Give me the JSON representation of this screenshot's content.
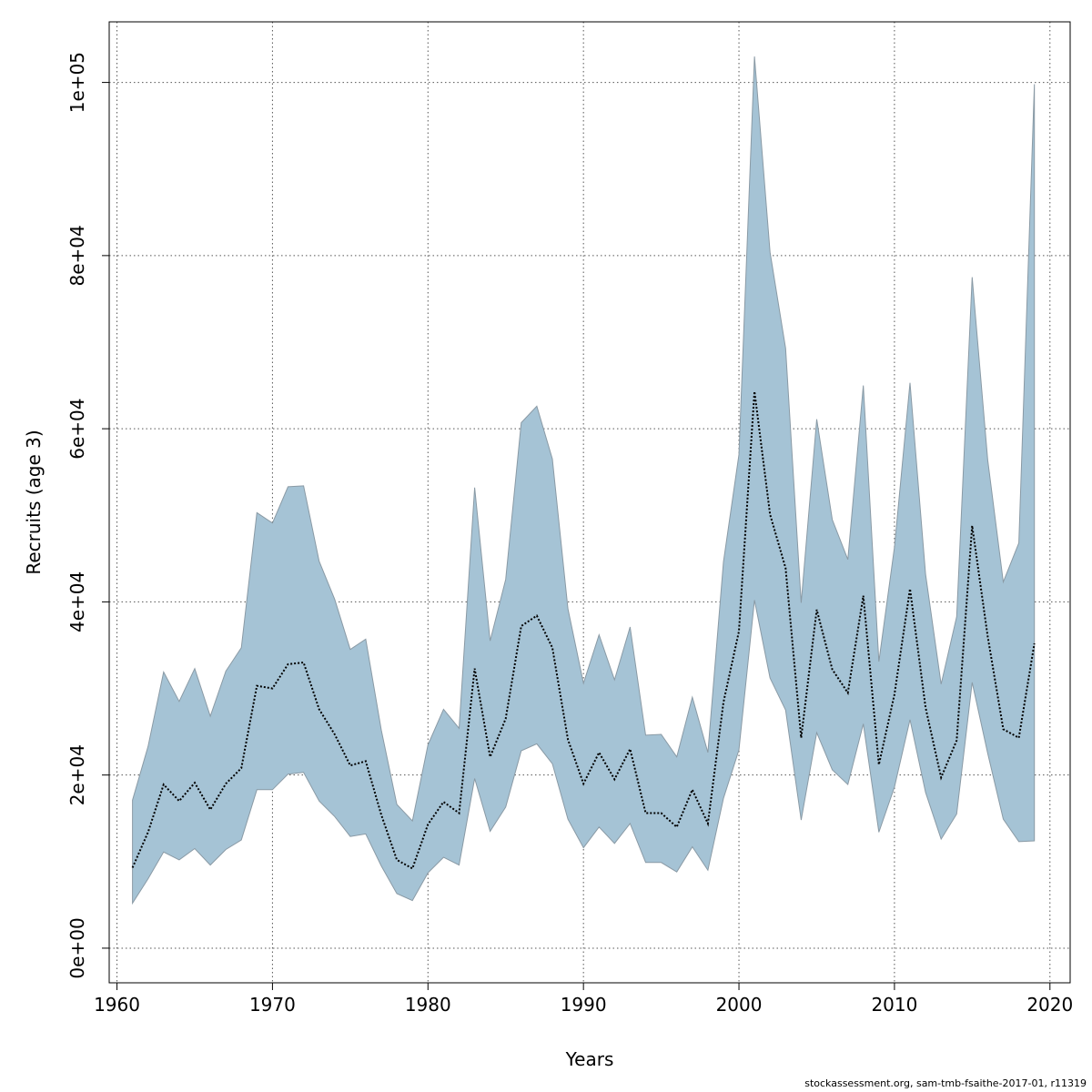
{
  "chart_data": {
    "type": "area",
    "xlabel": "Years",
    "ylabel": "Recruits (age 3)",
    "xlim": [
      1959.5,
      2021.3
    ],
    "ylim": [
      -4000,
      107000
    ],
    "x_ticks": [
      1960,
      1970,
      1980,
      1990,
      2000,
      2010,
      2020
    ],
    "x_tick_labels": [
      "1960",
      "1970",
      "1980",
      "1990",
      "2000",
      "2010",
      "2020"
    ],
    "y_ticks": [
      0,
      20000,
      40000,
      60000,
      80000,
      100000
    ],
    "y_tick_labels": [
      "0e+00",
      "2e+04",
      "4e+04",
      "6e+04",
      "8e+04",
      "1e+05"
    ],
    "grid": true,
    "colors": {
      "band_fill": "#a5c3d5",
      "band_stroke": "#8a9aa5",
      "line": "#000000",
      "grid": "#555555"
    },
    "series": [
      {
        "estimate": [
          9300,
          13400,
          18900,
          17000,
          19100,
          16000,
          19000,
          20800,
          30300,
          30000,
          32800,
          33000,
          27600,
          24700,
          21100,
          21600,
          15400,
          10200,
          9200,
          14300,
          16900,
          15600,
          32300,
          22100,
          26500,
          37200,
          38400,
          34700,
          24100,
          19000,
          22600,
          19500,
          23000,
          15600,
          15600,
          14000,
          18300,
          14400,
          28400,
          36600,
          64300,
          50100,
          43900,
          24300,
          39100,
          32200,
          29500,
          40700,
          21200,
          29300,
          41500,
          27800,
          19700,
          24000,
          48800,
          36000,
          25300,
          24300,
          35200
        ],
        "lower": [
          5200,
          8000,
          11100,
          10200,
          11500,
          9600,
          11400,
          12500,
          18300,
          18300,
          20100,
          20300,
          17000,
          15200,
          12900,
          13200,
          9500,
          6300,
          5500,
          8700,
          10500,
          9600,
          19600,
          13500,
          16300,
          22800,
          23600,
          21300,
          14900,
          11600,
          14000,
          12100,
          14400,
          9900,
          9900,
          8800,
          11700,
          9000,
          17300,
          22900,
          40200,
          31200,
          27500,
          14800,
          24900,
          20600,
          18900,
          25900,
          13400,
          18600,
          26400,
          18000,
          12600,
          15500,
          30700,
          22500,
          14900,
          12300,
          12400
        ],
        "upper": [
          17100,
          23300,
          31900,
          28500,
          32300,
          26800,
          32000,
          34700,
          50300,
          49100,
          53300,
          53400,
          44700,
          40300,
          34500,
          35700,
          25200,
          16600,
          14700,
          23500,
          27600,
          25400,
          53200,
          35500,
          42600,
          60700,
          62600,
          56500,
          39200,
          30600,
          36200,
          31000,
          37100,
          24600,
          24700,
          22100,
          29000,
          22600,
          44600,
          57000,
          103000,
          80400,
          69300,
          39900,
          61100,
          49500,
          44900,
          65000,
          33100,
          46300,
          65300,
          43200,
          30500,
          38300,
          77500,
          56400,
          42300,
          46800,
          99800
        ]
      }
    ],
    "x_start_year": 1961
  },
  "footer": {
    "text": "stockassessment.org, sam-tmb-fsaithe-2017-01, r11319"
  }
}
